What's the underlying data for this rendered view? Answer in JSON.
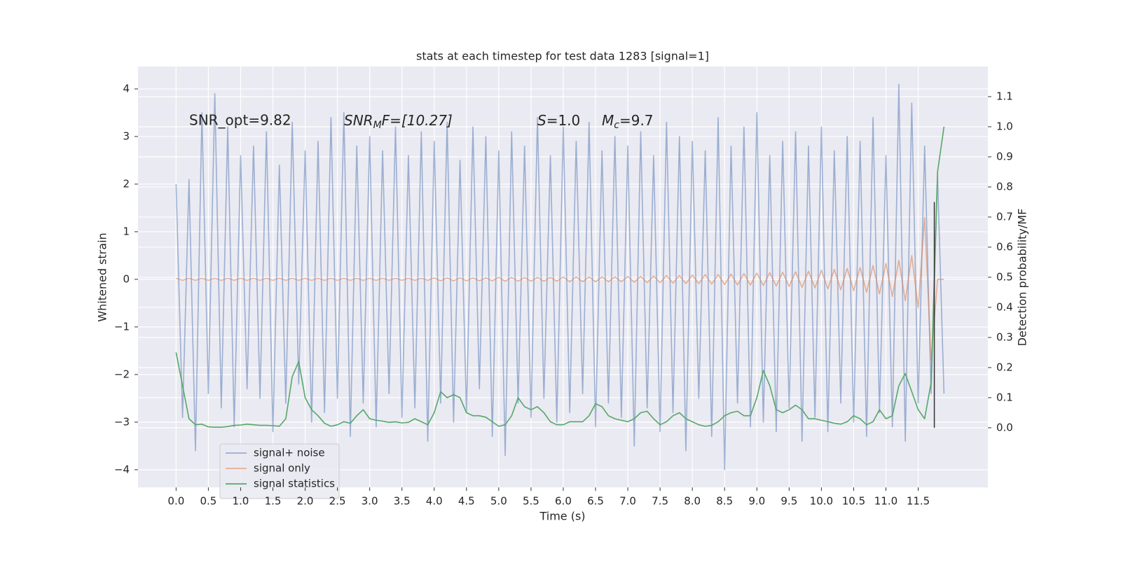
{
  "chart_data": {
    "type": "line",
    "title": "stats at each timestep for test data 1283 [signal=1]",
    "x_label": "Time (s)",
    "y_label": "Whitened strain",
    "y2_label": "Detection probability/MF",
    "annotations": {
      "snr_opt": "SNR_opt=9.82",
      "snr_mf": {
        "base": "SNR",
        "sub": "M",
        "rest": "F=[10.27]"
      },
      "s": {
        "base": "S",
        "rest": "=1.0"
      },
      "mc": {
        "base": "M",
        "sub": "c",
        "rest": "=9.7"
      }
    },
    "grid": true,
    "legend": "lower left",
    "xlim": [
      -0.59,
      12.58
    ],
    "ylim": [
      -4.37,
      4.47
    ],
    "y2lim": [
      -0.198,
      1.2
    ],
    "xticks": [
      {
        "value": 0,
        "label": "0.0"
      },
      0.5,
      {
        "value": 1,
        "label": "1.0"
      },
      1.5,
      {
        "value": 2,
        "label": "2.0"
      },
      2.5,
      {
        "value": 3,
        "label": "3.0"
      },
      3.5,
      {
        "value": 4,
        "label": "4.0"
      },
      4.5,
      {
        "value": 5,
        "label": "5.0"
      },
      5.5,
      {
        "value": 6,
        "label": "6.0"
      },
      6.5,
      {
        "value": 7,
        "label": "7.0"
      },
      7.5,
      {
        "value": 8,
        "label": "8.0"
      },
      8.5,
      {
        "value": 9,
        "label": "9.0"
      },
      9.5,
      {
        "value": 10,
        "label": "10.0"
      },
      10.5,
      {
        "value": 11,
        "label": "11.0"
      },
      11.5
    ],
    "yticks": [
      {
        "value": -4,
        "label": "−4"
      },
      {
        "value": -3,
        "label": "−3"
      },
      {
        "value": -2,
        "label": "−2"
      },
      {
        "value": -1,
        "label": "−1"
      },
      0,
      1,
      2,
      3,
      4
    ],
    "y2ticks": [
      {
        "value": 0,
        "label": "0.0"
      },
      0.1,
      0.2,
      0.3,
      0.4,
      0.5,
      0.6,
      0.7,
      0.8,
      0.9,
      {
        "value": 1,
        "label": "1.0"
      },
      1.1
    ],
    "x": [
      0,
      0.1,
      0.2,
      0.3,
      0.4,
      0.5,
      0.6,
      0.7,
      0.8,
      0.9,
      1,
      1.1,
      1.2,
      1.3,
      1.4,
      1.5,
      1.6,
      1.7,
      1.8,
      1.9,
      2,
      2.1,
      2.2,
      2.3,
      2.4,
      2.5,
      2.6,
      2.7,
      2.8,
      2.9,
      3,
      3.1,
      3.2,
      3.3,
      3.4,
      3.5,
      3.6,
      3.7,
      3.8,
      3.9,
      4,
      4.1,
      4.2,
      4.3,
      4.4,
      4.5,
      4.6,
      4.7,
      4.8,
      4.9,
      5,
      5.1,
      5.2,
      5.3,
      5.4,
      5.5,
      5.6,
      5.7,
      5.8,
      5.9,
      6,
      6.1,
      6.2,
      6.3,
      6.4,
      6.5,
      6.6,
      6.7,
      6.8,
      6.9,
      7,
      7.1,
      7.2,
      7.3,
      7.4,
      7.5,
      7.6,
      7.7,
      7.8,
      7.9,
      8,
      8.1,
      8.2,
      8.3,
      8.4,
      8.5,
      8.6,
      8.7,
      8.8,
      8.9,
      9,
      9.1,
      9.2,
      9.3,
      9.4,
      9.5,
      9.6,
      9.7,
      9.8,
      9.9,
      10,
      10.1,
      10.2,
      10.3,
      10.4,
      10.5,
      10.6,
      10.7,
      10.8,
      10.9,
      11,
      11.1,
      11.2,
      11.3,
      11.4,
      11.5,
      11.6,
      11.7,
      11.8,
      11.9
    ],
    "series": [
      {
        "name": "signal+ noise",
        "color": "#4c72b0",
        "opacity": 0.5,
        "values": [
          2.0,
          -2.9,
          2.1,
          -3.6,
          3.5,
          -2.4,
          3.9,
          -2.7,
          3.2,
          -3.1,
          2.6,
          -2.3,
          2.8,
          -2.5,
          3.1,
          -3.2,
          2.4,
          -2.6,
          3.3,
          -2.2,
          2.7,
          -3.0,
          2.9,
          -2.8,
          3.4,
          -2.5,
          3.5,
          -3.3,
          2.8,
          -2.6,
          3.0,
          -3.1,
          2.7,
          -2.4,
          3.2,
          -2.9,
          2.6,
          -2.7,
          3.1,
          -3.4,
          2.9,
          -2.6,
          3.3,
          -3.0,
          2.5,
          -2.8,
          3.2,
          -2.3,
          3.0,
          -3.3,
          2.7,
          -3.7,
          3.1,
          -2.6,
          2.8,
          -2.9,
          3.4,
          -2.5,
          2.6,
          -3.0,
          3.2,
          -2.8,
          2.9,
          -2.4,
          3.3,
          -3.1,
          2.7,
          -2.6,
          3.0,
          -2.9,
          2.8,
          -3.5,
          3.1,
          -2.7,
          2.6,
          -3.2,
          3.3,
          -2.8,
          3.0,
          -3.6,
          2.9,
          -2.5,
          2.7,
          -3.3,
          3.4,
          -4.0,
          2.8,
          -2.6,
          3.2,
          -3.1,
          3.5,
          -3.0,
          2.6,
          -3.2,
          2.9,
          -2.7,
          3.1,
          -3.4,
          2.8,
          -2.9,
          3.2,
          -3.2,
          2.7,
          -2.6,
          3.0,
          -3.0,
          2.9,
          -3.3,
          3.4,
          -2.8,
          2.6,
          -3.1,
          4.1,
          -3.4,
          3.7,
          -2.6,
          2.8,
          -2.4,
          2.2,
          -2.4
        ]
      },
      {
        "name": "signal only",
        "color": "#dd8452",
        "opacity": 0.6,
        "values": [
          0.02,
          -0.02,
          0.02,
          -0.02,
          0.02,
          -0.02,
          0.02,
          -0.02,
          0.02,
          -0.02,
          0.02,
          -0.02,
          0.02,
          -0.02,
          0.02,
          -0.02,
          0.02,
          -0.02,
          0.02,
          -0.02,
          0.02,
          -0.02,
          0.02,
          -0.02,
          0.02,
          -0.02,
          0.02,
          -0.02,
          0.02,
          -0.02,
          0.02,
          -0.02,
          0.02,
          -0.02,
          0.02,
          -0.02,
          0.02,
          -0.02,
          0.02,
          -0.02,
          0.03,
          -0.03,
          0.03,
          -0.03,
          0.03,
          -0.03,
          0.03,
          -0.03,
          0.03,
          -0.03,
          0.04,
          -0.04,
          0.04,
          -0.04,
          0.04,
          -0.04,
          0.04,
          -0.04,
          0.04,
          -0.04,
          0.05,
          -0.05,
          0.05,
          -0.05,
          0.05,
          -0.05,
          0.05,
          -0.05,
          0.05,
          -0.05,
          0.06,
          -0.06,
          0.06,
          -0.07,
          0.07,
          -0.07,
          0.08,
          -0.08,
          0.08,
          -0.09,
          0.09,
          -0.09,
          0.1,
          -0.1,
          0.1,
          -0.11,
          0.11,
          -0.12,
          0.12,
          -0.12,
          0.13,
          -0.13,
          0.14,
          -0.14,
          0.15,
          -0.15,
          0.16,
          -0.17,
          0.17,
          -0.18,
          0.19,
          -0.2,
          0.21,
          -0.22,
          0.23,
          -0.24,
          0.25,
          -0.27,
          0.29,
          -0.31,
          0.33,
          -0.36,
          0.4,
          -0.45,
          0.5,
          -0.6,
          1.3,
          -1.7,
          0,
          0
        ]
      },
      {
        "name": "signal statistics",
        "color": "#55a868",
        "opacity": 1,
        "axis": "y2",
        "values": [
          0.25,
          0.14,
          0.03,
          0.01,
          0.012,
          0.003,
          0.002,
          0.002,
          0.004,
          0.008,
          0.009,
          0.012,
          0.01,
          0.008,
          0.008,
          0.007,
          0.005,
          0.03,
          0.17,
          0.22,
          0.1,
          0.06,
          0.04,
          0.015,
          0.005,
          0.01,
          0.02,
          0.015,
          0.04,
          0.06,
          0.03,
          0.025,
          0.022,
          0.018,
          0.02,
          0.016,
          0.018,
          0.03,
          0.02,
          0.01,
          0.05,
          0.12,
          0.1,
          0.11,
          0.1,
          0.05,
          0.04,
          0.04,
          0.035,
          0.02,
          0.005,
          0.01,
          0.04,
          0.1,
          0.07,
          0.06,
          0.07,
          0.05,
          0.02,
          0.01,
          0.01,
          0.02,
          0.02,
          0.02,
          0.04,
          0.08,
          0.07,
          0.04,
          0.03,
          0.025,
          0.02,
          0.03,
          0.05,
          0.055,
          0.03,
          0.01,
          0.02,
          0.04,
          0.05,
          0.03,
          0.02,
          0.01,
          0.005,
          0.008,
          0.02,
          0.04,
          0.05,
          0.055,
          0.04,
          0.04,
          0.1,
          0.19,
          0.14,
          0.06,
          0.05,
          0.06,
          0.075,
          0.06,
          0.03,
          0.03,
          0.025,
          0.02,
          0.015,
          0.012,
          0.02,
          0.04,
          0.03,
          0.01,
          0.02,
          0.06,
          0.03,
          0.04,
          0.14,
          0.18,
          0.12,
          0.06,
          0.03,
          0.15,
          0.85,
          1.0
        ]
      }
    ],
    "vline": {
      "x": 11.75,
      "y2": [
        0,
        0.75
      ],
      "color": "#333333"
    }
  }
}
